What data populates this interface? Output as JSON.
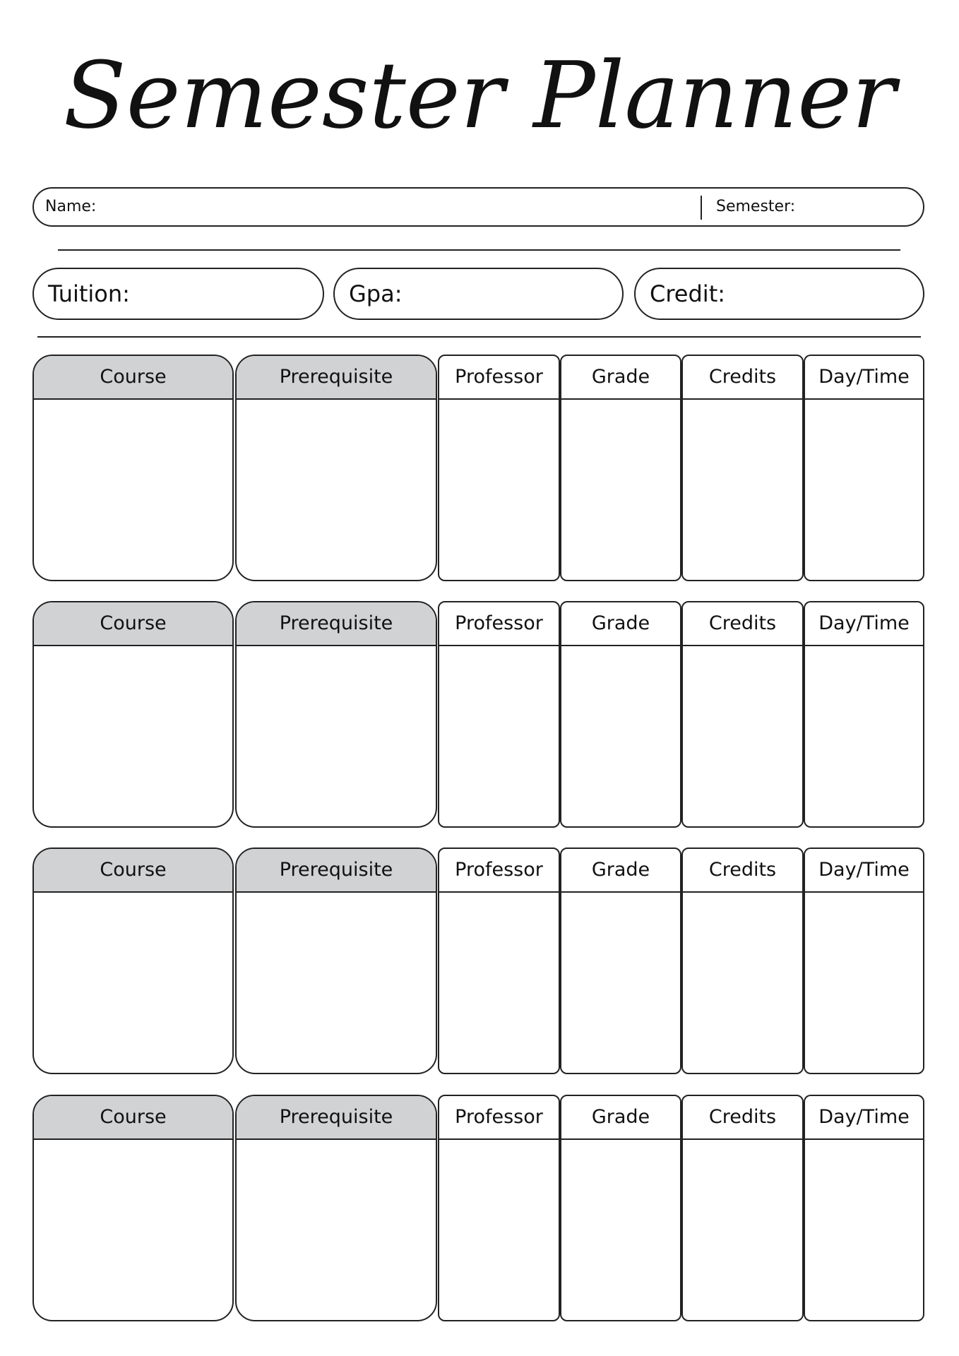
{
  "title": "Semester Planner",
  "info": {
    "name_label": "Name:",
    "semester_label": "Semester:"
  },
  "summary": {
    "tuition_label": "Tuition:",
    "gpa_label": "Gpa:",
    "credit_label": "Credit:"
  },
  "table_columns": [
    "Course",
    "Prerequisite",
    "Professor",
    "Grade",
    "Credits",
    "Day/Time"
  ],
  "header_fill": "#d1d2d4",
  "block_count": 4
}
